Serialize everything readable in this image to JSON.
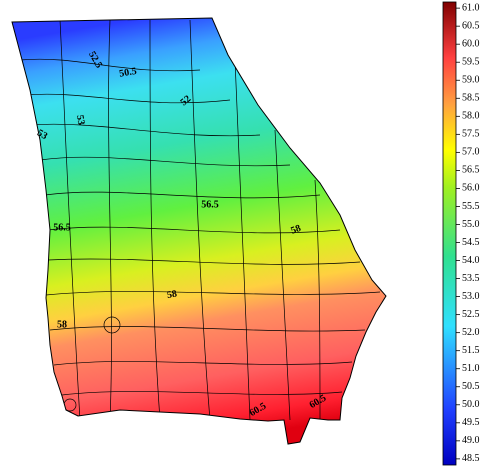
{
  "map": {
    "contour_labels": [
      52.5,
      50.5,
      52,
      53,
      53,
      56.5,
      56.5,
      58,
      58,
      58,
      60.5,
      60.5
    ]
  },
  "colorbar": {
    "lim": [
      48.33,
      61.17
    ],
    "ticks": [
      48.5,
      {
        "value": 49,
        "label": "49.0"
      },
      49.5,
      {
        "value": 50,
        "label": "50.0"
      },
      50.5,
      {
        "value": 51,
        "label": "51.0"
      },
      51.5,
      {
        "value": 52,
        "label": "52.0"
      },
      52.5,
      {
        "value": 53,
        "label": "53.0"
      },
      53.5,
      {
        "value": 54,
        "label": "54.0"
      },
      54.5,
      {
        "value": 55,
        "label": "55.0"
      },
      55.5,
      {
        "value": 56,
        "label": "56.0"
      },
      56.5,
      {
        "value": 57,
        "label": "57.0"
      },
      57.5,
      {
        "value": 58,
        "label": "58.0"
      },
      58.5,
      {
        "value": 59,
        "label": "59.0"
      },
      59.5,
      {
        "value": 60,
        "label": "60.0"
      },
      60.5,
      {
        "value": 61,
        "label": "61.0"
      }
    ]
  }
}
